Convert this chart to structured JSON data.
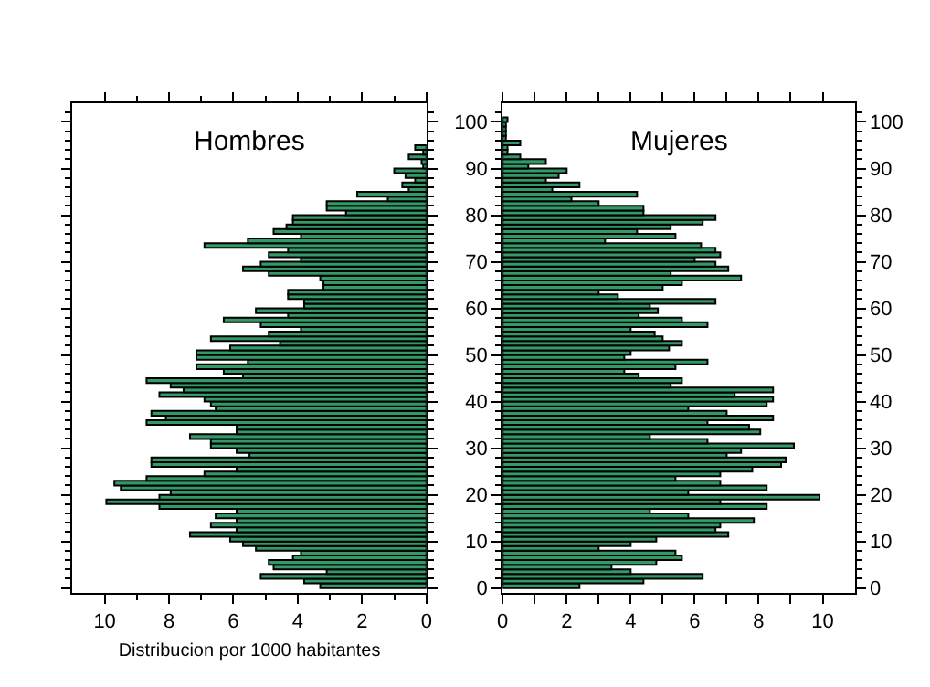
{
  "chart_data": [
    {
      "type": "bar",
      "orientation": "horizontal",
      "title": "Hombres",
      "xlabel": "Distribucion por 1000 habitantes",
      "color": "#339966",
      "x": [
        0,
        1,
        2,
        3,
        4,
        5,
        6,
        7,
        8,
        9,
        10,
        11,
        12,
        13,
        14,
        15,
        16,
        17,
        18,
        19,
        20,
        21,
        22,
        23,
        24,
        25,
        26,
        27,
        28,
        29,
        30,
        31,
        32,
        33,
        34,
        35,
        36,
        37,
        38,
        39,
        40,
        41,
        42,
        43,
        44,
        45,
        46,
        47,
        48,
        49,
        50,
        51,
        52,
        53,
        54,
        55,
        56,
        57,
        58,
        59,
        60,
        61,
        62,
        63,
        64,
        65,
        66,
        67,
        68,
        69,
        70,
        71,
        72,
        73,
        74,
        75,
        76,
        77,
        78,
        79,
        80,
        81,
        82,
        83,
        84,
        85,
        86,
        87,
        88,
        89,
        90,
        91,
        92,
        93,
        94
      ],
      "values": [
        3.3,
        3.8,
        5.15,
        3.1,
        4.75,
        4.9,
        4.15,
        3.9,
        5.3,
        5.7,
        6.1,
        7.35,
        5.9,
        6.7,
        5.9,
        6.55,
        5.9,
        8.3,
        9.95,
        8.3,
        7.95,
        9.5,
        9.7,
        8.7,
        6.9,
        5.9,
        8.55,
        8.55,
        5.5,
        5.9,
        6.7,
        6.7,
        7.35,
        5.9,
        5.9,
        8.7,
        8.1,
        8.55,
        6.55,
        6.7,
        6.9,
        8.3,
        7.55,
        7.95,
        8.7,
        5.7,
        6.3,
        7.15,
        5.55,
        7.15,
        7.15,
        6.1,
        4.55,
        6.7,
        4.9,
        3.9,
        5.15,
        6.3,
        4.3,
        5.3,
        3.8,
        3.8,
        4.3,
        4.3,
        3.2,
        3.2,
        3.3,
        4.9,
        5.7,
        5.15,
        3.9,
        4.9,
        4.3,
        6.9,
        5.55,
        3.9,
        4.75,
        4.35,
        4.15,
        4.15,
        2.5,
        3.1,
        3.1,
        1.2,
        2.15,
        0.55,
        0.75,
        0.35,
        0.65,
        1.0,
        0.1,
        0.15,
        0.55,
        0.1,
        0.35
      ],
      "xlim": [
        11,
        0
      ],
      "xticks": [
        10,
        8,
        6,
        4,
        2,
        0,
        {
          "value": 9,
          "label": null
        },
        {
          "value": 7,
          "label": null
        },
        {
          "value": 5,
          "label": null
        },
        {
          "value": 3,
          "label": null
        },
        {
          "value": 1,
          "label": null
        }
      ],
      "ylim": [
        -1,
        104
      ],
      "yticks": [
        0,
        10,
        20,
        30,
        40,
        50,
        60,
        70,
        80,
        90,
        100,
        {
          "value": 2,
          "label": null
        },
        {
          "value": 4,
          "label": null
        },
        {
          "value": 6,
          "label": null
        },
        {
          "value": 8,
          "label": null
        },
        {
          "value": 12,
          "label": null
        },
        {
          "value": 14,
          "label": null
        },
        {
          "value": 16,
          "label": null
        },
        {
          "value": 18,
          "label": null
        },
        {
          "value": 22,
          "label": null
        },
        {
          "value": 24,
          "label": null
        },
        {
          "value": 26,
          "label": null
        },
        {
          "value": 28,
          "label": null
        },
        {
          "value": 32,
          "label": null
        },
        {
          "value": 34,
          "label": null
        },
        {
          "value": 36,
          "label": null
        },
        {
          "value": 38,
          "label": null
        },
        {
          "value": 42,
          "label": null
        },
        {
          "value": 44,
          "label": null
        },
        {
          "value": 46,
          "label": null
        },
        {
          "value": 48,
          "label": null
        },
        {
          "value": 52,
          "label": null
        },
        {
          "value": 54,
          "label": null
        },
        {
          "value": 56,
          "label": null
        },
        {
          "value": 58,
          "label": null
        },
        {
          "value": 62,
          "label": null
        },
        {
          "value": 64,
          "label": null
        },
        {
          "value": 66,
          "label": null
        },
        {
          "value": 68,
          "label": null
        },
        {
          "value": 72,
          "label": null
        },
        {
          "value": 74,
          "label": null
        },
        {
          "value": 76,
          "label": null
        },
        {
          "value": 78,
          "label": null
        },
        {
          "value": 82,
          "label": null
        },
        {
          "value": 84,
          "label": null
        },
        {
          "value": 86,
          "label": null
        },
        {
          "value": 88,
          "label": null
        },
        {
          "value": 92,
          "label": null
        },
        {
          "value": 94,
          "label": null
        },
        {
          "value": 96,
          "label": null
        },
        {
          "value": 98,
          "label": null
        },
        {
          "value": 102,
          "label": null
        }
      ],
      "tick_labels": "x"
    },
    {
      "type": "bar",
      "orientation": "horizontal",
      "title": "Mujeres",
      "color": "#339966",
      "x": [
        0,
        1,
        2,
        3,
        4,
        5,
        6,
        7,
        8,
        9,
        10,
        11,
        12,
        13,
        14,
        15,
        16,
        17,
        18,
        19,
        20,
        21,
        22,
        23,
        24,
        25,
        26,
        27,
        28,
        29,
        30,
        31,
        32,
        33,
        34,
        35,
        36,
        37,
        38,
        39,
        40,
        41,
        42,
        43,
        44,
        45,
        46,
        47,
        48,
        49,
        50,
        51,
        52,
        53,
        54,
        55,
        56,
        57,
        58,
        59,
        60,
        61,
        62,
        63,
        64,
        65,
        66,
        67,
        68,
        69,
        70,
        71,
        72,
        73,
        74,
        75,
        76,
        77,
        78,
        79,
        80,
        81,
        82,
        83,
        84,
        85,
        86,
        87,
        88,
        89,
        90,
        91,
        92,
        93,
        94,
        95,
        96,
        97,
        98,
        99,
        100
      ],
      "values": [
        2.4,
        4.4,
        6.25,
        4.0,
        3.4,
        4.8,
        5.6,
        5.4,
        3.0,
        4.0,
        4.8,
        7.05,
        6.65,
        6.8,
        7.85,
        5.8,
        4.6,
        8.25,
        6.8,
        9.9,
        5.8,
        8.25,
        6.8,
        5.4,
        6.8,
        7.8,
        8.7,
        8.85,
        7.0,
        7.45,
        9.1,
        6.4,
        4.6,
        8.05,
        7.7,
        6.4,
        8.45,
        7.0,
        5.8,
        8.25,
        8.45,
        7.25,
        8.45,
        5.25,
        5.6,
        4.25,
        3.8,
        5.4,
        6.4,
        3.8,
        4.0,
        5.2,
        5.6,
        5.0,
        4.75,
        4.0,
        6.4,
        5.6,
        4.25,
        4.85,
        4.6,
        6.65,
        3.6,
        3.0,
        5.0,
        5.6,
        7.45,
        5.25,
        7.05,
        6.65,
        6.0,
        6.8,
        6.65,
        6.2,
        3.2,
        5.4,
        4.2,
        5.25,
        6.25,
        6.65,
        4.4,
        4.4,
        3.0,
        2.15,
        4.2,
        1.55,
        2.4,
        1.35,
        1.75,
        2.0,
        0.8,
        1.35,
        0.55,
        0.15,
        0.15,
        0.55,
        0.1,
        0.1,
        0.1,
        0.1,
        0.15
      ],
      "xlim": [
        0,
        11
      ],
      "xticks": [
        0,
        2,
        4,
        6,
        8,
        10,
        {
          "value": 1,
          "label": null
        },
        {
          "value": 3,
          "label": null
        },
        {
          "value": 5,
          "label": null
        },
        {
          "value": 7,
          "label": null
        },
        {
          "value": 9,
          "label": null
        }
      ],
      "ylim": [
        -1,
        104
      ],
      "yticks": [
        0,
        10,
        20,
        30,
        40,
        50,
        60,
        70,
        80,
        90,
        100,
        {
          "value": 2,
          "label": null
        },
        {
          "value": 4,
          "label": null
        },
        {
          "value": 6,
          "label": null
        },
        {
          "value": 8,
          "label": null
        },
        {
          "value": 12,
          "label": null
        },
        {
          "value": 14,
          "label": null
        },
        {
          "value": 16,
          "label": null
        },
        {
          "value": 18,
          "label": null
        },
        {
          "value": 22,
          "label": null
        },
        {
          "value": 24,
          "label": null
        },
        {
          "value": 26,
          "label": null
        },
        {
          "value": 28,
          "label": null
        },
        {
          "value": 32,
          "label": null
        },
        {
          "value": 34,
          "label": null
        },
        {
          "value": 36,
          "label": null
        },
        {
          "value": 38,
          "label": null
        },
        {
          "value": 42,
          "label": null
        },
        {
          "value": 44,
          "label": null
        },
        {
          "value": 46,
          "label": null
        },
        {
          "value": 48,
          "label": null
        },
        {
          "value": 52,
          "label": null
        },
        {
          "value": 54,
          "label": null
        },
        {
          "value": 56,
          "label": null
        },
        {
          "value": 58,
          "label": null
        },
        {
          "value": 62,
          "label": null
        },
        {
          "value": 64,
          "label": null
        },
        {
          "value": 66,
          "label": null
        },
        {
          "value": 68,
          "label": null
        },
        {
          "value": 72,
          "label": null
        },
        {
          "value": 74,
          "label": null
        },
        {
          "value": 76,
          "label": null
        },
        {
          "value": 78,
          "label": null
        },
        {
          "value": 82,
          "label": null
        },
        {
          "value": 84,
          "label": null
        },
        {
          "value": 86,
          "label": null
        },
        {
          "value": 88,
          "label": null
        },
        {
          "value": 92,
          "label": null
        },
        {
          "value": 94,
          "label": null
        },
        {
          "value": 96,
          "label": null
        },
        {
          "value": 98,
          "label": null
        },
        {
          "value": 102,
          "label": null
        }
      ],
      "y2lim": [
        -1,
        104
      ],
      "y2ticks": [
        0,
        10,
        20,
        30,
        40,
        50,
        60,
        70,
        80,
        90,
        100,
        {
          "value": 2,
          "label": null
        },
        {
          "value": 4,
          "label": null
        },
        {
          "value": 6,
          "label": null
        },
        {
          "value": 8,
          "label": null
        },
        {
          "value": 12,
          "label": null
        },
        {
          "value": 14,
          "label": null
        },
        {
          "value": 16,
          "label": null
        },
        {
          "value": 18,
          "label": null
        },
        {
          "value": 22,
          "label": null
        },
        {
          "value": 24,
          "label": null
        },
        {
          "value": 26,
          "label": null
        },
        {
          "value": 28,
          "label": null
        },
        {
          "value": 32,
          "label": null
        },
        {
          "value": 34,
          "label": null
        },
        {
          "value": 36,
          "label": null
        },
        {
          "value": 38,
          "label": null
        },
        {
          "value": 42,
          "label": null
        },
        {
          "value": 44,
          "label": null
        },
        {
          "value": 46,
          "label": null
        },
        {
          "value": 48,
          "label": null
        },
        {
          "value": 52,
          "label": null
        },
        {
          "value": 54,
          "label": null
        },
        {
          "value": 56,
          "label": null
        },
        {
          "value": 58,
          "label": null
        },
        {
          "value": 62,
          "label": null
        },
        {
          "value": 64,
          "label": null
        },
        {
          "value": 66,
          "label": null
        },
        {
          "value": 68,
          "label": null
        },
        {
          "value": 72,
          "label": null
        },
        {
          "value": 74,
          "label": null
        },
        {
          "value": 76,
          "label": null
        },
        {
          "value": 78,
          "label": null
        },
        {
          "value": 82,
          "label": null
        },
        {
          "value": 84,
          "label": null
        },
        {
          "value": 86,
          "label": null
        },
        {
          "value": 88,
          "label": null
        },
        {
          "value": 92,
          "label": null
        },
        {
          "value": 94,
          "label": null
        },
        {
          "value": 96,
          "label": null
        },
        {
          "value": 98,
          "label": null
        },
        {
          "value": 102,
          "label": null
        }
      ]
    }
  ]
}
